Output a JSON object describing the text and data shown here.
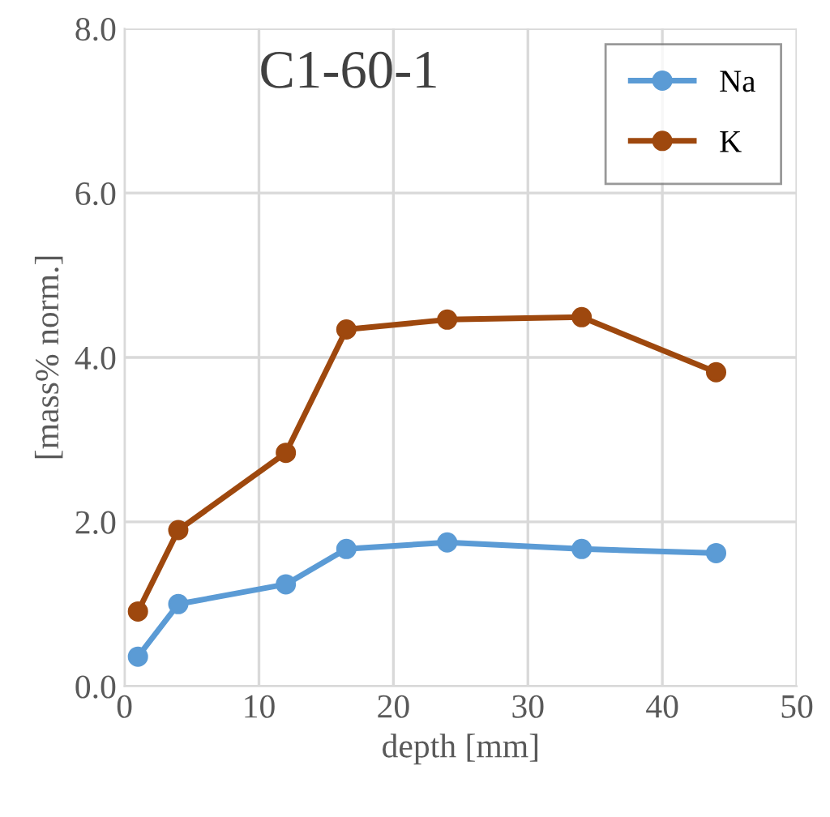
{
  "chart_data": {
    "type": "line",
    "title": "C1-60-1",
    "xlabel": "depth [mm]",
    "ylabel": "[mass% norm.]",
    "x": [
      1,
      4,
      12,
      16.5,
      24,
      34,
      44
    ],
    "series": [
      {
        "name": "Na",
        "color": "#5b9bd5",
        "values": [
          0.36,
          1.0,
          1.24,
          1.67,
          1.75,
          1.67,
          1.62
        ]
      },
      {
        "name": "K",
        "color": "#9e480e",
        "values": [
          0.91,
          1.9,
          2.84,
          4.34,
          4.46,
          4.49,
          3.82
        ]
      }
    ],
    "xlim": [
      0,
      50
    ],
    "xticks": [
      0,
      10,
      20,
      30,
      40,
      50
    ],
    "ylim": [
      0,
      8
    ],
    "yticks": [
      {
        "value": 0,
        "label": "0.0"
      },
      {
        "value": 2,
        "label": "2.0"
      },
      {
        "value": 4,
        "label": "4.0"
      },
      {
        "value": 6,
        "label": "6.0"
      },
      {
        "value": 8,
        "label": "8.0"
      }
    ],
    "grid": true,
    "legend": "top right",
    "marker": "circle",
    "line_style": "solid"
  }
}
